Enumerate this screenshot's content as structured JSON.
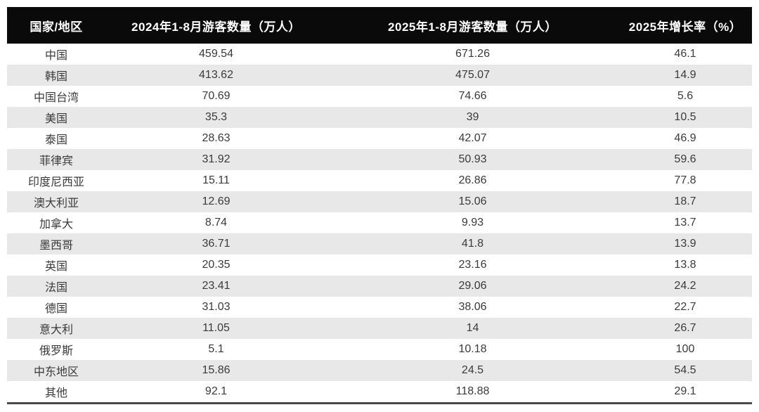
{
  "colors": {
    "header_bg": "#0a0a0a",
    "header_text": "#ffffff",
    "row_alt_bg": "#e8e8e8",
    "body_text": "#3a3a3a",
    "bottom_border": "#4a4a4a"
  },
  "chart_data": {
    "type": "table",
    "columns": [
      {
        "label": "国家/地区"
      },
      {
        "label": "2024年1-8月游客数量（万人）"
      },
      {
        "label": "2025年1-8月游客数量（万人）"
      },
      {
        "label": "2025年增长率（%）"
      }
    ],
    "rows": [
      [
        "中国",
        "459.54",
        "671.26",
        "46.1"
      ],
      [
        "韩国",
        "413.62",
        "475.07",
        "14.9"
      ],
      [
        "中国台湾",
        "70.69",
        "74.66",
        "5.6"
      ],
      [
        "美国",
        "35.3",
        "39",
        "10.5"
      ],
      [
        "泰国",
        "28.63",
        "42.07",
        "46.9"
      ],
      [
        "菲律宾",
        "31.92",
        "50.93",
        "59.6"
      ],
      [
        "印度尼西亚",
        "15.11",
        "26.86",
        "77.8"
      ],
      [
        "澳大利亚",
        "12.69",
        "15.06",
        "18.7"
      ],
      [
        "加拿大",
        "8.74",
        "9.93",
        "13.7"
      ],
      [
        "墨西哥",
        "36.71",
        "41.8",
        "13.9"
      ],
      [
        "英国",
        "20.35",
        "23.16",
        "13.8"
      ],
      [
        "法国",
        "23.41",
        "29.06",
        "24.2"
      ],
      [
        "德国",
        "31.03",
        "38.06",
        "22.7"
      ],
      [
        "意大利",
        "11.05",
        "14",
        "26.7"
      ],
      [
        "俄罗斯",
        "5.1",
        "10.18",
        "100"
      ],
      [
        "中东地区",
        "15.86",
        "24.5",
        "54.5"
      ],
      [
        "其他",
        "92.1",
        "118.88",
        "29.1"
      ]
    ]
  }
}
